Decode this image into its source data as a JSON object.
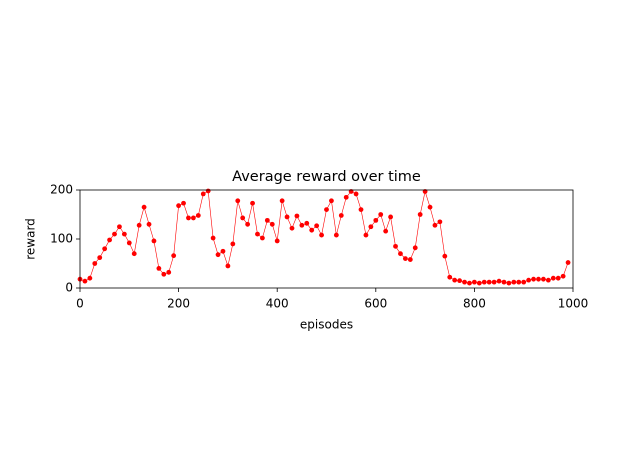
{
  "chart_data": {
    "type": "line",
    "title": "Average reward over time",
    "xlabel": "episodes",
    "ylabel": "reward",
    "x": [
      0,
      10,
      20,
      30,
      40,
      50,
      60,
      70,
      80,
      90,
      100,
      110,
      120,
      130,
      140,
      150,
      160,
      170,
      180,
      190,
      200,
      210,
      220,
      230,
      240,
      250,
      260,
      270,
      280,
      290,
      300,
      310,
      320,
      330,
      340,
      350,
      360,
      370,
      380,
      390,
      400,
      410,
      420,
      430,
      440,
      450,
      460,
      470,
      480,
      490,
      500,
      510,
      520,
      530,
      540,
      550,
      560,
      570,
      580,
      590,
      600,
      610,
      620,
      630,
      640,
      650,
      660,
      670,
      680,
      690,
      700,
      710,
      720,
      730,
      740,
      750,
      760,
      770,
      780,
      790,
      800,
      810,
      820,
      830,
      840,
      850,
      860,
      870,
      880,
      890,
      900,
      910,
      920,
      930,
      940,
      950,
      960,
      970,
      980,
      990
    ],
    "values": [
      18,
      14,
      20,
      50,
      62,
      80,
      98,
      110,
      125,
      110,
      92,
      70,
      128,
      165,
      130,
      96,
      40,
      28,
      32,
      66,
      168,
      173,
      143,
      143,
      148,
      192,
      198,
      102,
      68,
      75,
      45,
      90,
      178,
      143,
      130,
      173,
      110,
      102,
      138,
      130,
      96,
      178,
      145,
      122,
      147,
      128,
      132,
      118,
      127,
      108,
      160,
      178,
      108,
      148,
      185,
      197,
      192,
      160,
      108,
      125,
      138,
      150,
      116,
      145,
      85,
      70,
      60,
      58,
      82,
      150,
      197,
      165,
      128,
      135,
      65,
      22,
      16,
      15,
      12,
      10,
      12,
      10,
      12,
      12,
      12,
      14,
      12,
      10,
      12,
      12,
      12,
      16,
      18,
      18,
      18,
      16,
      20,
      20,
      24,
      52
    ],
    "color": "#ff0000",
    "xlim": [
      0,
      1000
    ],
    "xticks": [
      0,
      200,
      400,
      600,
      800,
      1000
    ],
    "ylim": [
      0,
      200
    ],
    "yticks": [
      0,
      100,
      200
    ]
  }
}
